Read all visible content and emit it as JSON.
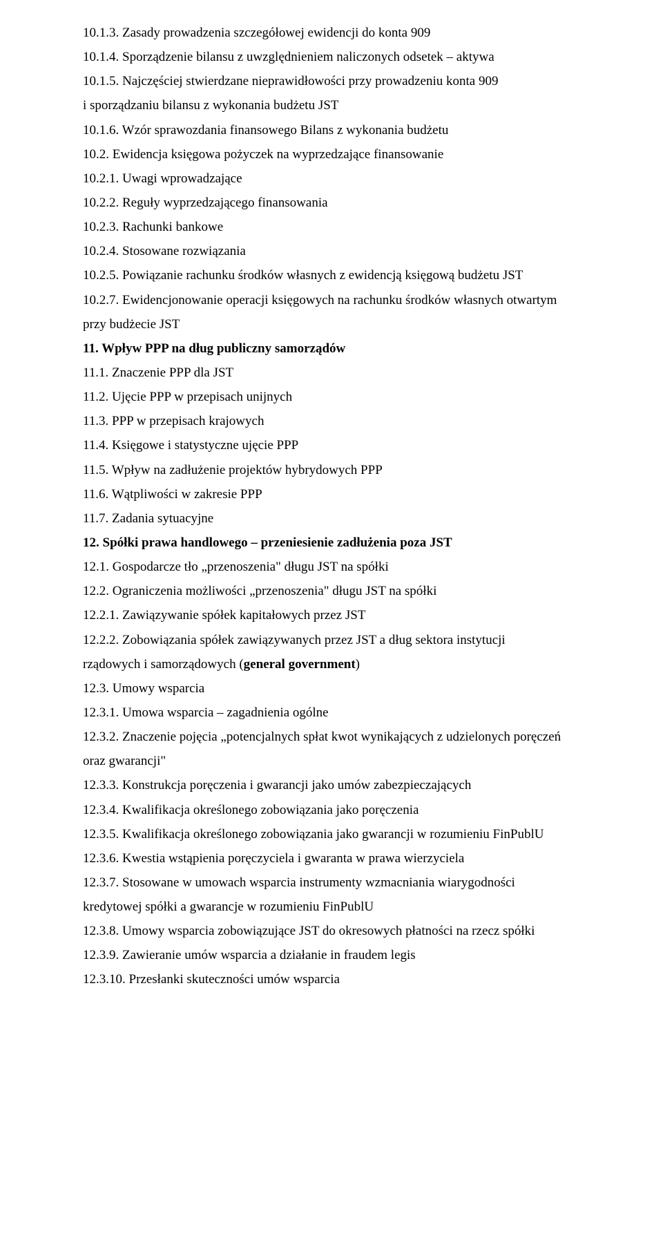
{
  "lines": [
    {
      "text": "10.1.3. Zasady prowadzenia szczegółowej ewidencji do konta 909",
      "bold": false
    },
    {
      "text": "10.1.4. Sporządzenie bilansu z uwzględnieniem naliczonych odsetek – aktywa",
      "bold": false
    },
    {
      "text": "10.1.5. Najczęściej stwierdzane nieprawidłowości przy prowadzeniu konta 909",
      "bold": false
    },
    {
      "text": "i sporządzaniu bilansu z wykonania budżetu JST",
      "bold": false
    },
    {
      "text": "10.1.6. Wzór sprawozdania finansowego Bilans z wykonania budżetu",
      "bold": false
    },
    {
      "text": "10.2. Ewidencja księgowa pożyczek na wyprzedzające finansowanie",
      "bold": false
    },
    {
      "text": "10.2.1. Uwagi wprowadzające",
      "bold": false
    },
    {
      "text": "10.2.2. Reguły wyprzedzającego finansowania",
      "bold": false
    },
    {
      "text": "10.2.3. Rachunki bankowe",
      "bold": false
    },
    {
      "text": "10.2.4. Stosowane rozwiązania",
      "bold": false
    },
    {
      "text": "10.2.5. Powiązanie rachunku środków własnych z ewidencją księgową budżetu JST",
      "bold": false
    },
    {
      "text": "10.2.7. Ewidencjonowanie operacji księgowych na rachunku środków własnych otwartym",
      "bold": false
    },
    {
      "text": "przy budżecie JST",
      "bold": false
    },
    {
      "text": "11. Wpływ PPP na dług publiczny samorządów",
      "bold": true
    },
    {
      "text": "11.1. Znaczenie PPP dla JST",
      "bold": false
    },
    {
      "text": "11.2. Ujęcie PPP w przepisach unijnych",
      "bold": false
    },
    {
      "text": "11.3. PPP w przepisach krajowych",
      "bold": false
    },
    {
      "text": "11.4. Księgowe i statystyczne ujęcie PPP",
      "bold": false
    },
    {
      "text": "11.5. Wpływ na zadłużenie projektów hybrydowych PPP",
      "bold": false
    },
    {
      "text": "11.6. Wątpliwości w zakresie PPP",
      "bold": false
    },
    {
      "text": "11.7. Zadania sytuacyjne",
      "bold": false
    },
    {
      "text": "12. Spółki prawa handlowego – przeniesienie zadłużenia poza JST",
      "bold": true
    },
    {
      "text": "12.1. Gospodarcze tło „przenoszenia\" długu JST na spółki",
      "bold": false
    },
    {
      "text": "12.2. Ograniczenia możliwości „przenoszenia\" długu JST na spółki",
      "bold": false
    },
    {
      "text": "12.2.1. Zawiązywanie spółek kapitałowych przez JST",
      "bold": false
    },
    {
      "text": "12.2.2. Zobowiązania spółek zawiązywanych przez JST a dług sektora instytucji",
      "bold": false
    },
    {
      "runs": [
        {
          "text": "rządowych i samorządowych (",
          "bold": false
        },
        {
          "text": "general government",
          "bold": true
        },
        {
          "text": ")",
          "bold": false
        }
      ]
    },
    {
      "text": "12.3. Umowy wsparcia",
      "bold": false
    },
    {
      "text": "12.3.1. Umowa wsparcia – zagadnienia ogólne",
      "bold": false
    },
    {
      "text": "12.3.2. Znaczenie pojęcia „potencjalnych spłat kwot wynikających z udzielonych poręczeń",
      "bold": false
    },
    {
      "text": "oraz gwarancji\"",
      "bold": false
    },
    {
      "text": "12.3.3. Konstrukcja poręczenia i gwarancji jako umów zabezpieczających",
      "bold": false
    },
    {
      "text": "12.3.4. Kwalifikacja określonego zobowiązania jako poręczenia",
      "bold": false
    },
    {
      "text": "12.3.5. Kwalifikacja określonego zobowiązania jako gwarancji w rozumieniu FinPublU",
      "bold": false
    },
    {
      "text": "12.3.6. Kwestia wstąpienia poręczyciela i gwaranta w prawa wierzyciela",
      "bold": false
    },
    {
      "text": "12.3.7. Stosowane w umowach wsparcia instrumenty wzmacniania wiarygodności",
      "bold": false
    },
    {
      "text": "kredytowej spółki a gwarancje w rozumieniu FinPublU",
      "bold": false
    },
    {
      "text": "12.3.8. Umowy wsparcia zobowiązujące JST do okresowych płatności na rzecz spółki",
      "bold": false
    },
    {
      "text": "12.3.9. Zawieranie umów wsparcia a działanie in fraudem legis",
      "bold": false
    },
    {
      "text": "12.3.10. Przesłanki skuteczności umów wsparcia",
      "bold": false
    }
  ]
}
